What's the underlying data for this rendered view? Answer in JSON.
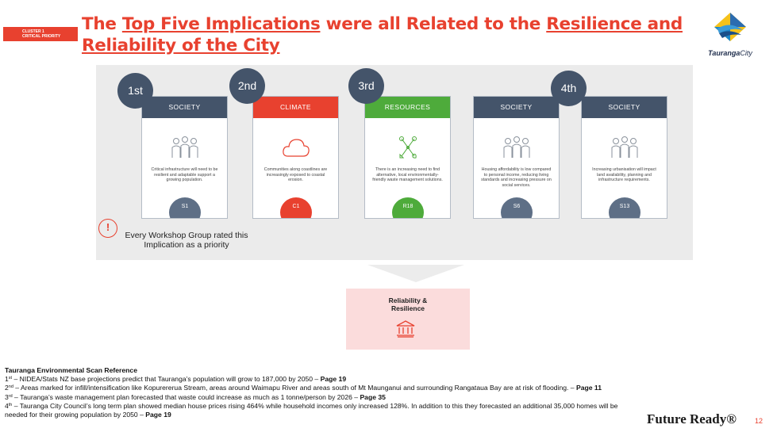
{
  "header": {
    "tag_line1": "CLUSTER 1",
    "tag_line2": "CRITICAL PRIORITY",
    "title_part1": "The ",
    "title_link1": "Top Five Implications",
    "title_part2": " were all Related to the ",
    "title_link2": "Resilience and Reliability of the City",
    "logo_text_bold": "Tauranga",
    "logo_text_light": "City"
  },
  "cards": [
    {
      "rank": "1st",
      "category": "SOCIETY",
      "icon": "people-icon",
      "color": "#44546a",
      "text": "Critical infrastructure will need to be resilient and adaptable support a growing population.",
      "code": "S1"
    },
    {
      "rank": "2nd",
      "category": "CLIMATE",
      "icon": "cloud-icon",
      "color": "#e8412f",
      "text": "Communities along coastlines are increasingly exposed to coastal erosion.",
      "code": "C1"
    },
    {
      "rank": "3rd",
      "category": "RESOURCES",
      "icon": "recycle-icon",
      "color": "#4eab3b",
      "text": "There is an increasing need to find alternative, local environmentally-friendly waste management solutions.",
      "code": "R18"
    },
    {
      "rank": "4th",
      "category": "SOCIETY",
      "icon": "people-icon",
      "color": "#44546a",
      "text": "Housing affordability is low compared to personal income, reducing living standards and increasing pressure on social services.",
      "code": "S6"
    },
    {
      "rank": "",
      "category": "SOCIETY",
      "icon": "people-icon",
      "color": "#44546a",
      "text": "Increasing urbanisation will impact land availability, planning and infrastructure requirements.",
      "code": "S13"
    }
  ],
  "rated_note": "Every Workshop Group rated this Implication as a priority",
  "result": {
    "title_line1": "Reliability &",
    "title_line2": "Resilience",
    "icon": "institution-icon"
  },
  "references": {
    "heading": "Tauranga Environmental Scan Reference",
    "items": [
      {
        "ordinal": "1",
        "suffix": "st",
        "text": " – NIDEA/Stats NZ base projections predict that Tauranga’s population will grow to 187,000 by 2050 – ",
        "page": "Page 19"
      },
      {
        "ordinal": "2",
        "suffix": "nd",
        "text": " – Areas marked for infill/intensification like Kopurererua Stream, areas around Waimapu River and areas south of Mt Maunganui and surrounding Rangataua Bay are at risk of flooding. – ",
        "page": "Page 11"
      },
      {
        "ordinal": "3",
        "suffix": "rd",
        "text": " – Tauranga’s waste management plan forecasted that waste could increase as much as 1 tonne/person by 2026 – ",
        "page": "Page 35"
      },
      {
        "ordinal": "4",
        "suffix": "th",
        "text": " – Tauranga City Council’s long term plan showed median house prices rising 464% while household incomes only increased 128%. In addition to this they forecasted an additional 35,000 homes will be needed for their growing population by 2050 – ",
        "page": "Page 19"
      }
    ]
  },
  "footer": {
    "brand": "Future Ready®",
    "page_number": "12"
  }
}
